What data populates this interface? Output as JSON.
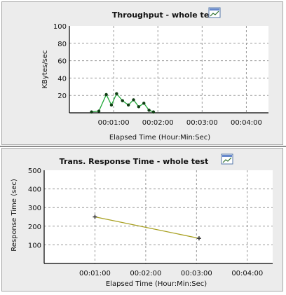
{
  "chart_data": [
    {
      "type": "line",
      "title": "Throughput - whole test",
      "xlabel": "Elapsed Time (Hour:Min:Sec)",
      "ylabel": "KBytes/sec",
      "xlim": [
        0,
        270
      ],
      "ylim": [
        0,
        100
      ],
      "x_ticks": [
        60,
        120,
        180,
        240
      ],
      "x_tick_labels": [
        "00:01:00",
        "00:02:00",
        "00:03:00",
        "00:04:00"
      ],
      "y_ticks": [
        20,
        40,
        60,
        80,
        100
      ],
      "y_tick_labels": [
        "20",
        "40",
        "60",
        "80",
        "100"
      ],
      "grid": true,
      "series": [
        {
          "color": "#22a83a",
          "marker_color": "#0e3d12",
          "points": [
            {
              "x": 30,
              "y": 1
            },
            {
              "x": 40,
              "y": 2
            },
            {
              "x": 50,
              "y": 21
            },
            {
              "x": 57,
              "y": 9
            },
            {
              "x": 64,
              "y": 22
            },
            {
              "x": 72,
              "y": 14
            },
            {
              "x": 80,
              "y": 9
            },
            {
              "x": 87,
              "y": 15
            },
            {
              "x": 94,
              "y": 7
            },
            {
              "x": 101,
              "y": 11
            },
            {
              "x": 108,
              "y": 3
            },
            {
              "x": 114,
              "y": 1
            }
          ]
        }
      ]
    },
    {
      "type": "line",
      "title": "Trans. Response Time - whole test",
      "xlabel": "Elapsed Time (Hour:Min:Sec)",
      "ylabel": "Response Time (sec)",
      "xlim": [
        0,
        270
      ],
      "ylim": [
        0,
        500
      ],
      "x_ticks": [
        60,
        120,
        180,
        240
      ],
      "x_tick_labels": [
        "00:01:00",
        "00:02:00",
        "00:03:00",
        "00:04:00"
      ],
      "y_ticks": [
        100,
        200,
        300,
        400,
        500
      ],
      "y_tick_labels": [
        "100",
        "200",
        "300",
        "400",
        "500"
      ],
      "grid": true,
      "series": [
        {
          "color": "#a8a020",
          "marker_color": "#333333",
          "points": [
            {
              "x": 60,
              "y": 250
            },
            {
              "x": 183,
              "y": 135
            }
          ]
        }
      ]
    }
  ]
}
